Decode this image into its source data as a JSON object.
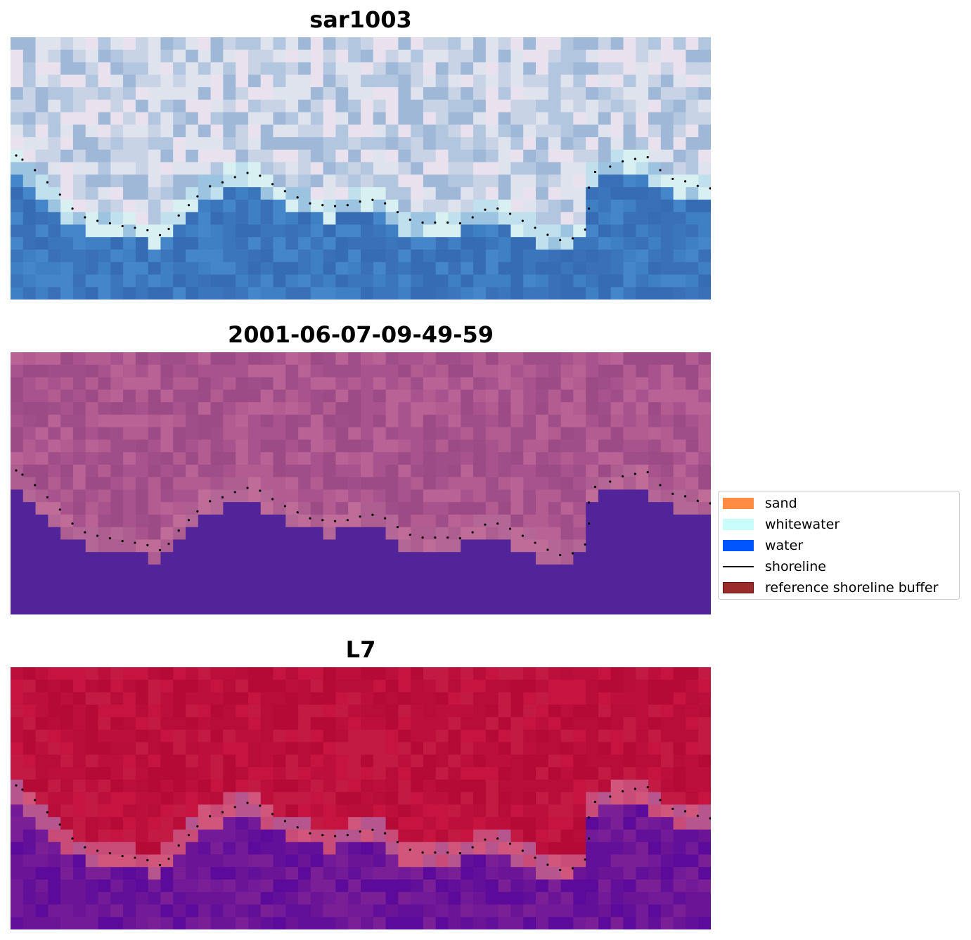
{
  "chart_data": [
    {
      "type": "heatmap",
      "title": "sar1003",
      "image": "RGB satellite tile",
      "grid": false,
      "top_colors": [
        "#dfe3ee",
        "#c9d3e6",
        "#b3c6e0",
        "#e9e2ee",
        "#9fb8d8"
      ],
      "bottom_colors": [
        "#3f7fc4",
        "#3b76bd",
        "#3a70b8",
        "#4486c9",
        "#356cb4"
      ],
      "band_colors": [
        "#bfe0ec",
        "#d8f0f2",
        "#9cc4e0"
      ]
    },
    {
      "type": "heatmap",
      "title": "2001-06-07-09-49-59",
      "image": "classified tile",
      "grid": false,
      "top_colors": [
        "#a9538e",
        "#9d4b87",
        "#b35c91",
        "#a04e8a",
        "#b86295"
      ],
      "bottom_colors": [
        "#52249a",
        "#52249a",
        "#52249a",
        "#52249a",
        "#52249a"
      ],
      "band_colors": [
        "#b46696",
        "#c06c98",
        "#ad5d90"
      ]
    },
    {
      "type": "heatmap",
      "title": "L7",
      "image": "MNDWI tile",
      "grid": false,
      "top_colors": [
        "#bd0f3c",
        "#b50a36",
        "#c21a42",
        "#b80d39",
        "#c5143f"
      ],
      "bottom_colors": [
        "#6b1496",
        "#62109a",
        "#731a98",
        "#5c0a9a",
        "#7a1f96"
      ],
      "band_colors": [
        "#c94b78",
        "#b7558f",
        "#d0567c"
      ]
    }
  ],
  "shoreline": {
    "color": "#000000",
    "points": [
      [
        0.0,
        33.8
      ],
      [
        0.5,
        35.0
      ],
      [
        1.5,
        38.0
      ],
      [
        2.5,
        41.5
      ],
      [
        3.5,
        45.0
      ],
      [
        4.5,
        49.0
      ],
      [
        5.5,
        51.5
      ],
      [
        6.5,
        52.5
      ],
      [
        7.5,
        53.2
      ],
      [
        8.5,
        54.0
      ],
      [
        9.5,
        54.5
      ],
      [
        10.5,
        55.2
      ],
      [
        11.5,
        56.6
      ],
      [
        12.2,
        54.8
      ],
      [
        13.0,
        51.0
      ],
      [
        13.8,
        48.0
      ],
      [
        14.5,
        45.5
      ],
      [
        15.5,
        42.6
      ],
      [
        16.5,
        41.5
      ],
      [
        17.5,
        40.0
      ],
      [
        18.5,
        38.8
      ],
      [
        19.5,
        39.6
      ],
      [
        20.5,
        42.0
      ],
      [
        21.5,
        44.0
      ],
      [
        22.5,
        45.8
      ],
      [
        23.5,
        47.5
      ],
      [
        24.5,
        48.0
      ],
      [
        25.5,
        48.3
      ],
      [
        26.5,
        48.0
      ],
      [
        27.5,
        47.0
      ],
      [
        28.5,
        46.5
      ],
      [
        29.5,
        47.5
      ],
      [
        30.5,
        50.0
      ],
      [
        31.5,
        52.2
      ],
      [
        32.5,
        53.0
      ],
      [
        33.5,
        53.0
      ],
      [
        34.5,
        53.0
      ],
      [
        35.5,
        53.2
      ],
      [
        36.5,
        51.5
      ],
      [
        37.5,
        49.3
      ],
      [
        38.5,
        49.0
      ],
      [
        39.5,
        50.5
      ],
      [
        40.5,
        52.5
      ],
      [
        41.5,
        54.5
      ],
      [
        42.5,
        56.5
      ],
      [
        43.5,
        58.0
      ],
      [
        44.5,
        57.5
      ],
      [
        45.5,
        55.0
      ],
      [
        45.8,
        49.0
      ],
      [
        45.8,
        43.0
      ],
      [
        46.3,
        38.5
      ],
      [
        47.5,
        37.0
      ],
      [
        48.5,
        35.5
      ],
      [
        49.5,
        34.8
      ],
      [
        50.5,
        34.3
      ],
      [
        51.5,
        38.0
      ],
      [
        52.5,
        40.5
      ],
      [
        53.5,
        41.2
      ],
      [
        54.5,
        42.5
      ],
      [
        55.5,
        43.2
      ],
      [
        56.0,
        41.8
      ]
    ]
  },
  "legend": {
    "items": [
      {
        "label": "sand",
        "color": "#ff8c42",
        "kind": "patch"
      },
      {
        "label": "whitewater",
        "color": "#c8fdfc",
        "kind": "patch"
      },
      {
        "label": "water",
        "color": "#0055ff",
        "kind": "patch"
      },
      {
        "label": "shoreline",
        "color": "#000000",
        "kind": "line"
      },
      {
        "label": "reference shoreline buffer",
        "color": "#9b2a2a",
        "kind": "patch"
      }
    ]
  }
}
